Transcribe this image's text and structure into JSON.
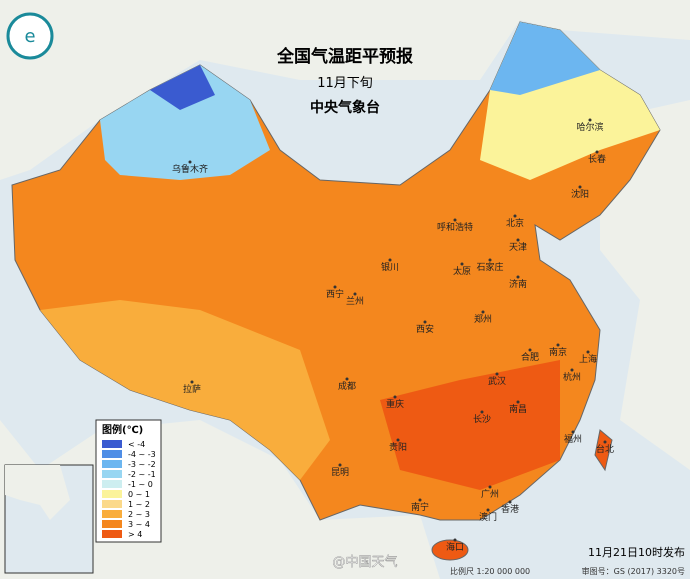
{
  "header": {
    "title": "全国气温距平预报",
    "subtitle": "11月下旬",
    "publisher": "中央气象台"
  },
  "legend": {
    "title": "图例(℃)",
    "items": [
      {
        "label": "< -4",
        "color": "#3a5bd0"
      },
      {
        "label": "-4 ~ -3",
        "color": "#4f8ee6"
      },
      {
        "label": "-3 ~ -2",
        "color": "#6cb6f0"
      },
      {
        "label": "-2 ~ -1",
        "color": "#98d6f2"
      },
      {
        "label": "-1 ~ 0",
        "color": "#cdeef0"
      },
      {
        "label": "0 ~ 1",
        "color": "#fbf39a"
      },
      {
        "label": "1 ~ 2",
        "color": "#fbd98a"
      },
      {
        "label": "2 ~ 3",
        "color": "#f9ad3c"
      },
      {
        "label": "3 ~ 4",
        "color": "#f4871e"
      },
      {
        "label": "> 4",
        "color": "#ee5a13"
      }
    ]
  },
  "cities": [
    "哈尔滨",
    "长春",
    "沈阳",
    "北京",
    "天津",
    "呼和浩特",
    "石家庄",
    "太原",
    "济南",
    "银川",
    "兰州",
    "西宁",
    "西安",
    "郑州",
    "合肥",
    "南京",
    "上海",
    "杭州",
    "武汉",
    "成都",
    "重庆",
    "长沙",
    "南昌",
    "福州",
    "台北",
    "贵阳",
    "昆明",
    "南宁",
    "广州",
    "香港",
    "澳门",
    "海口",
    "拉萨",
    "乌鲁木齐"
  ],
  "footer": {
    "release": "11月21日10时发布",
    "scale": "比例尺 1:20 000 000",
    "map_number": "审图号：GS (2017) 3320号",
    "watermark": "@中国天气"
  }
}
